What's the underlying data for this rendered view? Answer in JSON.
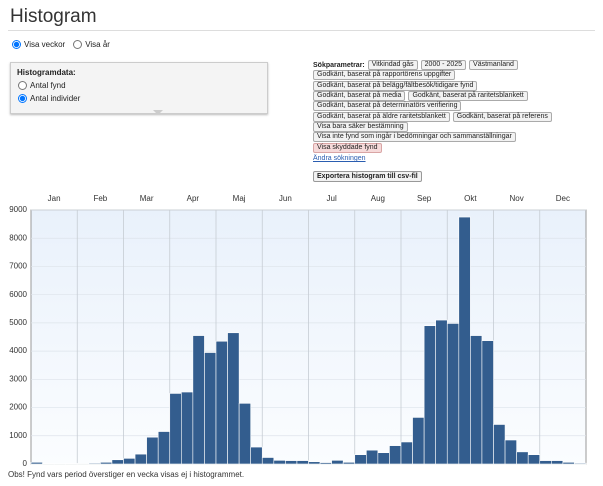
{
  "header": {
    "title": "Histogram"
  },
  "view_options": [
    "Visa veckor",
    "Visa år"
  ],
  "histogram_data": {
    "title": "Histogramdata:",
    "options": [
      "Antal fynd",
      "Antal individer"
    ]
  },
  "search_params": {
    "label": "Sökparametrar:",
    "rows": [
      [
        "Vitkindad gås",
        "2000 - 2025",
        "Västmanland"
      ],
      [
        "Godkänt, baserat på rapportörens uppgifter"
      ],
      [
        "Godkänt, baserat på belägg/fältbesök/tidigare fynd"
      ],
      [
        "Godkänt, baserat på media",
        "Godkänt, baserat på raritetsblankett"
      ],
      [
        "Godkänt, baserat på determinatörs verifiering"
      ],
      [
        "Godkänt, baserat på äldre raritetsblankett",
        "Godkänt, baserat på referens"
      ],
      [
        "Visa bara säker bestämning"
      ],
      [
        "Visa inte fynd som ingår i bedömningar och sammanställningar"
      ],
      [
        "Visa skyddade fynd"
      ]
    ],
    "change_link": "Ändra sökningen",
    "export_button": "Exportera histogram till csv-fil"
  },
  "chart_data": {
    "type": "bar",
    "month_labels": [
      "Jan",
      "Feb",
      "Mar",
      "Apr",
      "Maj",
      "Jun",
      "Jul",
      "Aug",
      "Sep",
      "Okt",
      "Nov",
      "Dec"
    ],
    "categories": [
      null,
      null,
      null,
      null,
      null,
      null,
      null,
      null,
      null,
      null,
      null,
      null,
      null,
      null,
      null,
      null,
      null,
      null,
      null,
      null,
      null,
      null,
      null,
      null,
      null,
      null,
      null,
      null,
      null,
      null,
      null,
      null,
      null,
      null,
      null,
      null,
      null,
      null,
      null,
      null,
      null,
      null,
      null,
      null,
      null,
      null,
      null,
      null
    ],
    "values": [
      60,
      15,
      10,
      15,
      20,
      30,
      60,
      150,
      200,
      350,
      950,
      1150,
      2500,
      2550,
      4550,
      3950,
      4350,
      4650,
      2150,
      600,
      230,
      130,
      120,
      120,
      80,
      50,
      130,
      60,
      330,
      490,
      400,
      650,
      780,
      1650,
      4900,
      5100,
      4980,
      8750,
      4550,
      4370,
      1400,
      850,
      430,
      330,
      120,
      120,
      60,
      30
    ],
    "color": "#335d8e",
    "ylim": [
      0,
      9000
    ],
    "yticks": [
      0,
      1000,
      2000,
      3000,
      4000,
      5000,
      6000,
      7000,
      8000,
      9000
    ],
    "grid": true
  },
  "footnote": "Obs! Fynd vars period överstiger en vecka visas ej i histogrammet."
}
